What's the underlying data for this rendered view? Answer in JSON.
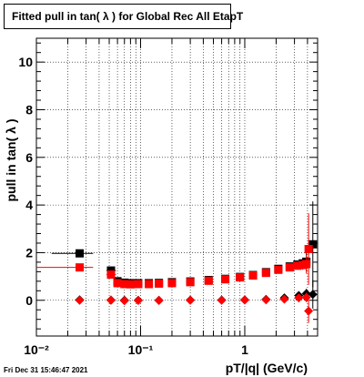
{
  "title": "Fitted pull in tan( λ ) for Global Rec All EtapT",
  "timestamp": "Fri Dec 31 15:46:47 2021",
  "chart_data": {
    "type": "scatter",
    "xlabel": "pT/|q| (GeV/c)",
    "ylabel": "pull in tan( λ )",
    "x_scale": "log",
    "xlim": [
      0.01,
      5.0
    ],
    "ylim": [
      -1.5,
      11.0
    ],
    "grid": true,
    "x_tick_labels": [
      "10⁻²",
      "10⁻¹",
      "1"
    ],
    "y_tick_labels": [
      "0",
      "2",
      "4",
      "6",
      "8",
      "10"
    ],
    "series": [
      {
        "color": "#000000",
        "marker": "square",
        "points": [
          {
            "x": 0.026,
            "y": 1.97,
            "xerr": [
              0.014,
              0.035
            ],
            "yerr": 0.06
          },
          {
            "x": 0.052,
            "y": 1.25,
            "xerr": [
              0.047,
              0.058
            ],
            "yerr": 0.08
          },
          {
            "x": 0.06,
            "y": 0.8,
            "yerr": 0.05
          },
          {
            "x": 0.07,
            "y": 0.74,
            "yerr": 0.04
          },
          {
            "x": 0.08,
            "y": 0.72,
            "yerr": 0.04
          },
          {
            "x": 0.095,
            "y": 0.72,
            "yerr": 0.04
          },
          {
            "x": 0.12,
            "y": 0.72,
            "yerr": 0.03
          },
          {
            "x": 0.15,
            "y": 0.73,
            "yerr": 0.03
          },
          {
            "x": 0.2,
            "y": 0.76,
            "yerr": 0.03
          },
          {
            "x": 0.3,
            "y": 0.79,
            "yerr": 0.03
          },
          {
            "x": 0.45,
            "y": 0.85,
            "yerr": 0.03
          },
          {
            "x": 0.65,
            "y": 0.9,
            "yerr": 0.03
          },
          {
            "x": 0.9,
            "y": 0.98,
            "yerr": 0.03
          },
          {
            "x": 1.2,
            "y": 1.06,
            "yerr": 0.04
          },
          {
            "x": 1.6,
            "y": 1.18,
            "yerr": 0.05
          },
          {
            "x": 2.1,
            "y": 1.32,
            "yerr": 0.07
          },
          {
            "x": 2.7,
            "y": 1.42,
            "yerr": 0.09
          },
          {
            "x": 3.2,
            "y": 1.5,
            "yerr": 0.12
          },
          {
            "x": 3.6,
            "y": 1.55,
            "yerr": 0.2
          },
          {
            "x": 3.9,
            "y": 1.62,
            "yerr": 0.4
          },
          {
            "x": 4.5,
            "y": 2.35,
            "yerr": 1.8
          }
        ]
      },
      {
        "color": "#ff0000",
        "marker": "square",
        "points": [
          {
            "x": 0.026,
            "y": 1.38,
            "xerr": [
              0.01,
              0.035
            ],
            "yerr": 0.06
          },
          {
            "x": 0.052,
            "y": 1.08,
            "xerr": [
              0.047,
              0.058
            ],
            "yerr": 0.08
          },
          {
            "x": 0.06,
            "y": 0.72,
            "yerr": 0.05
          },
          {
            "x": 0.07,
            "y": 0.68,
            "yerr": 0.04
          },
          {
            "x": 0.08,
            "y": 0.67,
            "yerr": 0.04
          },
          {
            "x": 0.095,
            "y": 0.68,
            "yerr": 0.04
          },
          {
            "x": 0.12,
            "y": 0.68,
            "yerr": 0.03
          },
          {
            "x": 0.15,
            "y": 0.7,
            "yerr": 0.03
          },
          {
            "x": 0.2,
            "y": 0.72,
            "yerr": 0.03
          },
          {
            "x": 0.3,
            "y": 0.76,
            "yerr": 0.03
          },
          {
            "x": 0.45,
            "y": 0.82,
            "yerr": 0.03
          },
          {
            "x": 0.65,
            "y": 0.88,
            "yerr": 0.03
          },
          {
            "x": 0.9,
            "y": 0.96,
            "yerr": 0.03
          },
          {
            "x": 1.2,
            "y": 1.04,
            "yerr": 0.04
          },
          {
            "x": 1.6,
            "y": 1.15,
            "yerr": 0.05
          },
          {
            "x": 2.1,
            "y": 1.28,
            "yerr": 0.07
          },
          {
            "x": 2.7,
            "y": 1.38,
            "yerr": 0.09
          },
          {
            "x": 3.2,
            "y": 1.45,
            "yerr": 0.12
          },
          {
            "x": 3.6,
            "y": 1.48,
            "yerr": 0.2
          },
          {
            "x": 3.9,
            "y": 1.52,
            "yerr": 0.4
          },
          {
            "x": 4.1,
            "y": 2.15,
            "yerr": 1.5
          }
        ]
      },
      {
        "color": "#000000",
        "marker": "diamond",
        "points": [
          {
            "x": 0.026,
            "y": 0.02,
            "yerr": 0.03
          },
          {
            "x": 0.052,
            "y": 0.01,
            "yerr": 0.04
          },
          {
            "x": 0.07,
            "y": 0.0,
            "yerr": 0.03
          },
          {
            "x": 0.095,
            "y": 0.0,
            "yerr": 0.03
          },
          {
            "x": 0.15,
            "y": 0.0,
            "yerr": 0.02
          },
          {
            "x": 0.3,
            "y": 0.01,
            "yerr": 0.02
          },
          {
            "x": 0.6,
            "y": 0.01,
            "yerr": 0.02
          },
          {
            "x": 1.0,
            "y": 0.02,
            "yerr": 0.02
          },
          {
            "x": 1.6,
            "y": 0.04,
            "yerr": 0.03
          },
          {
            "x": 2.4,
            "y": 0.1,
            "yerr": 0.05
          },
          {
            "x": 3.3,
            "y": 0.2,
            "yerr": 0.1
          },
          {
            "x": 3.9,
            "y": 0.28,
            "yerr": 0.2
          },
          {
            "x": 4.5,
            "y": 0.25,
            "yerr": 0.6
          }
        ]
      },
      {
        "color": "#ff0000",
        "marker": "diamond",
        "points": [
          {
            "x": 0.026,
            "y": 0.0,
            "yerr": 0.03
          },
          {
            "x": 0.052,
            "y": 0.0,
            "yerr": 0.04
          },
          {
            "x": 0.07,
            "y": -0.02,
            "yerr": 0.03
          },
          {
            "x": 0.095,
            "y": -0.01,
            "yerr": 0.03
          },
          {
            "x": 0.15,
            "y": -0.01,
            "yerr": 0.02
          },
          {
            "x": 0.3,
            "y": 0.0,
            "yerr": 0.02
          },
          {
            "x": 0.6,
            "y": 0.0,
            "yerr": 0.02
          },
          {
            "x": 1.0,
            "y": 0.01,
            "yerr": 0.02
          },
          {
            "x": 1.6,
            "y": 0.02,
            "yerr": 0.03
          },
          {
            "x": 2.4,
            "y": 0.05,
            "yerr": 0.05
          },
          {
            "x": 3.3,
            "y": 0.1,
            "yerr": 0.1
          },
          {
            "x": 3.9,
            "y": 0.12,
            "yerr": 0.2
          },
          {
            "x": 4.1,
            "y": -0.45,
            "yerr": 0.5
          }
        ]
      }
    ]
  }
}
